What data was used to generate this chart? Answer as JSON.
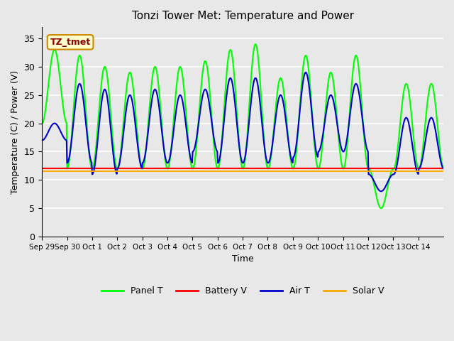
{
  "title": "Tonzi Tower Met: Temperature and Power",
  "ylabel": "Temperature (C) / Power (V)",
  "xlabel": "Time",
  "annotation": "TZ_tmet",
  "ylim": [
    0,
    37
  ],
  "yticks": [
    0,
    5,
    10,
    15,
    20,
    25,
    30,
    35
  ],
  "xtick_labels": [
    "Sep 29",
    "Sep 30",
    "Oct 1",
    "Oct 2",
    "Oct 3",
    "Oct 4",
    "Oct 5",
    "Oct 6",
    "Oct 7",
    "Oct 8",
    "Oct 9",
    "Oct 10",
    "Oct 11",
    "Oct 12",
    "Oct 13",
    "Oct 14"
  ],
  "plot_bg_color": "#e8e8e8",
  "grid_color": "#ffffff",
  "panel_t_color": "#00ff00",
  "battery_v_color": "#ff0000",
  "air_t_color": "#0000cc",
  "solar_v_color": "#ffaa00",
  "line_width": 1.5,
  "panel_day_peaks": [
    33,
    32,
    30,
    29,
    30,
    30,
    31,
    33,
    34,
    28,
    32,
    29,
    32,
    5,
    27,
    27
  ],
  "panel_night_min": [
    20,
    12,
    12,
    12,
    12,
    12,
    12,
    12,
    12,
    12,
    12,
    12,
    12,
    12,
    12,
    12
  ],
  "air_day_peaks": [
    20,
    27,
    26,
    25,
    26,
    25,
    26,
    28,
    28,
    25,
    29,
    25,
    27,
    8,
    21,
    21
  ],
  "air_night_min": [
    17,
    13,
    11,
    12,
    13,
    13,
    15,
    13,
    13,
    13,
    14,
    15,
    15,
    11,
    11,
    12
  ]
}
